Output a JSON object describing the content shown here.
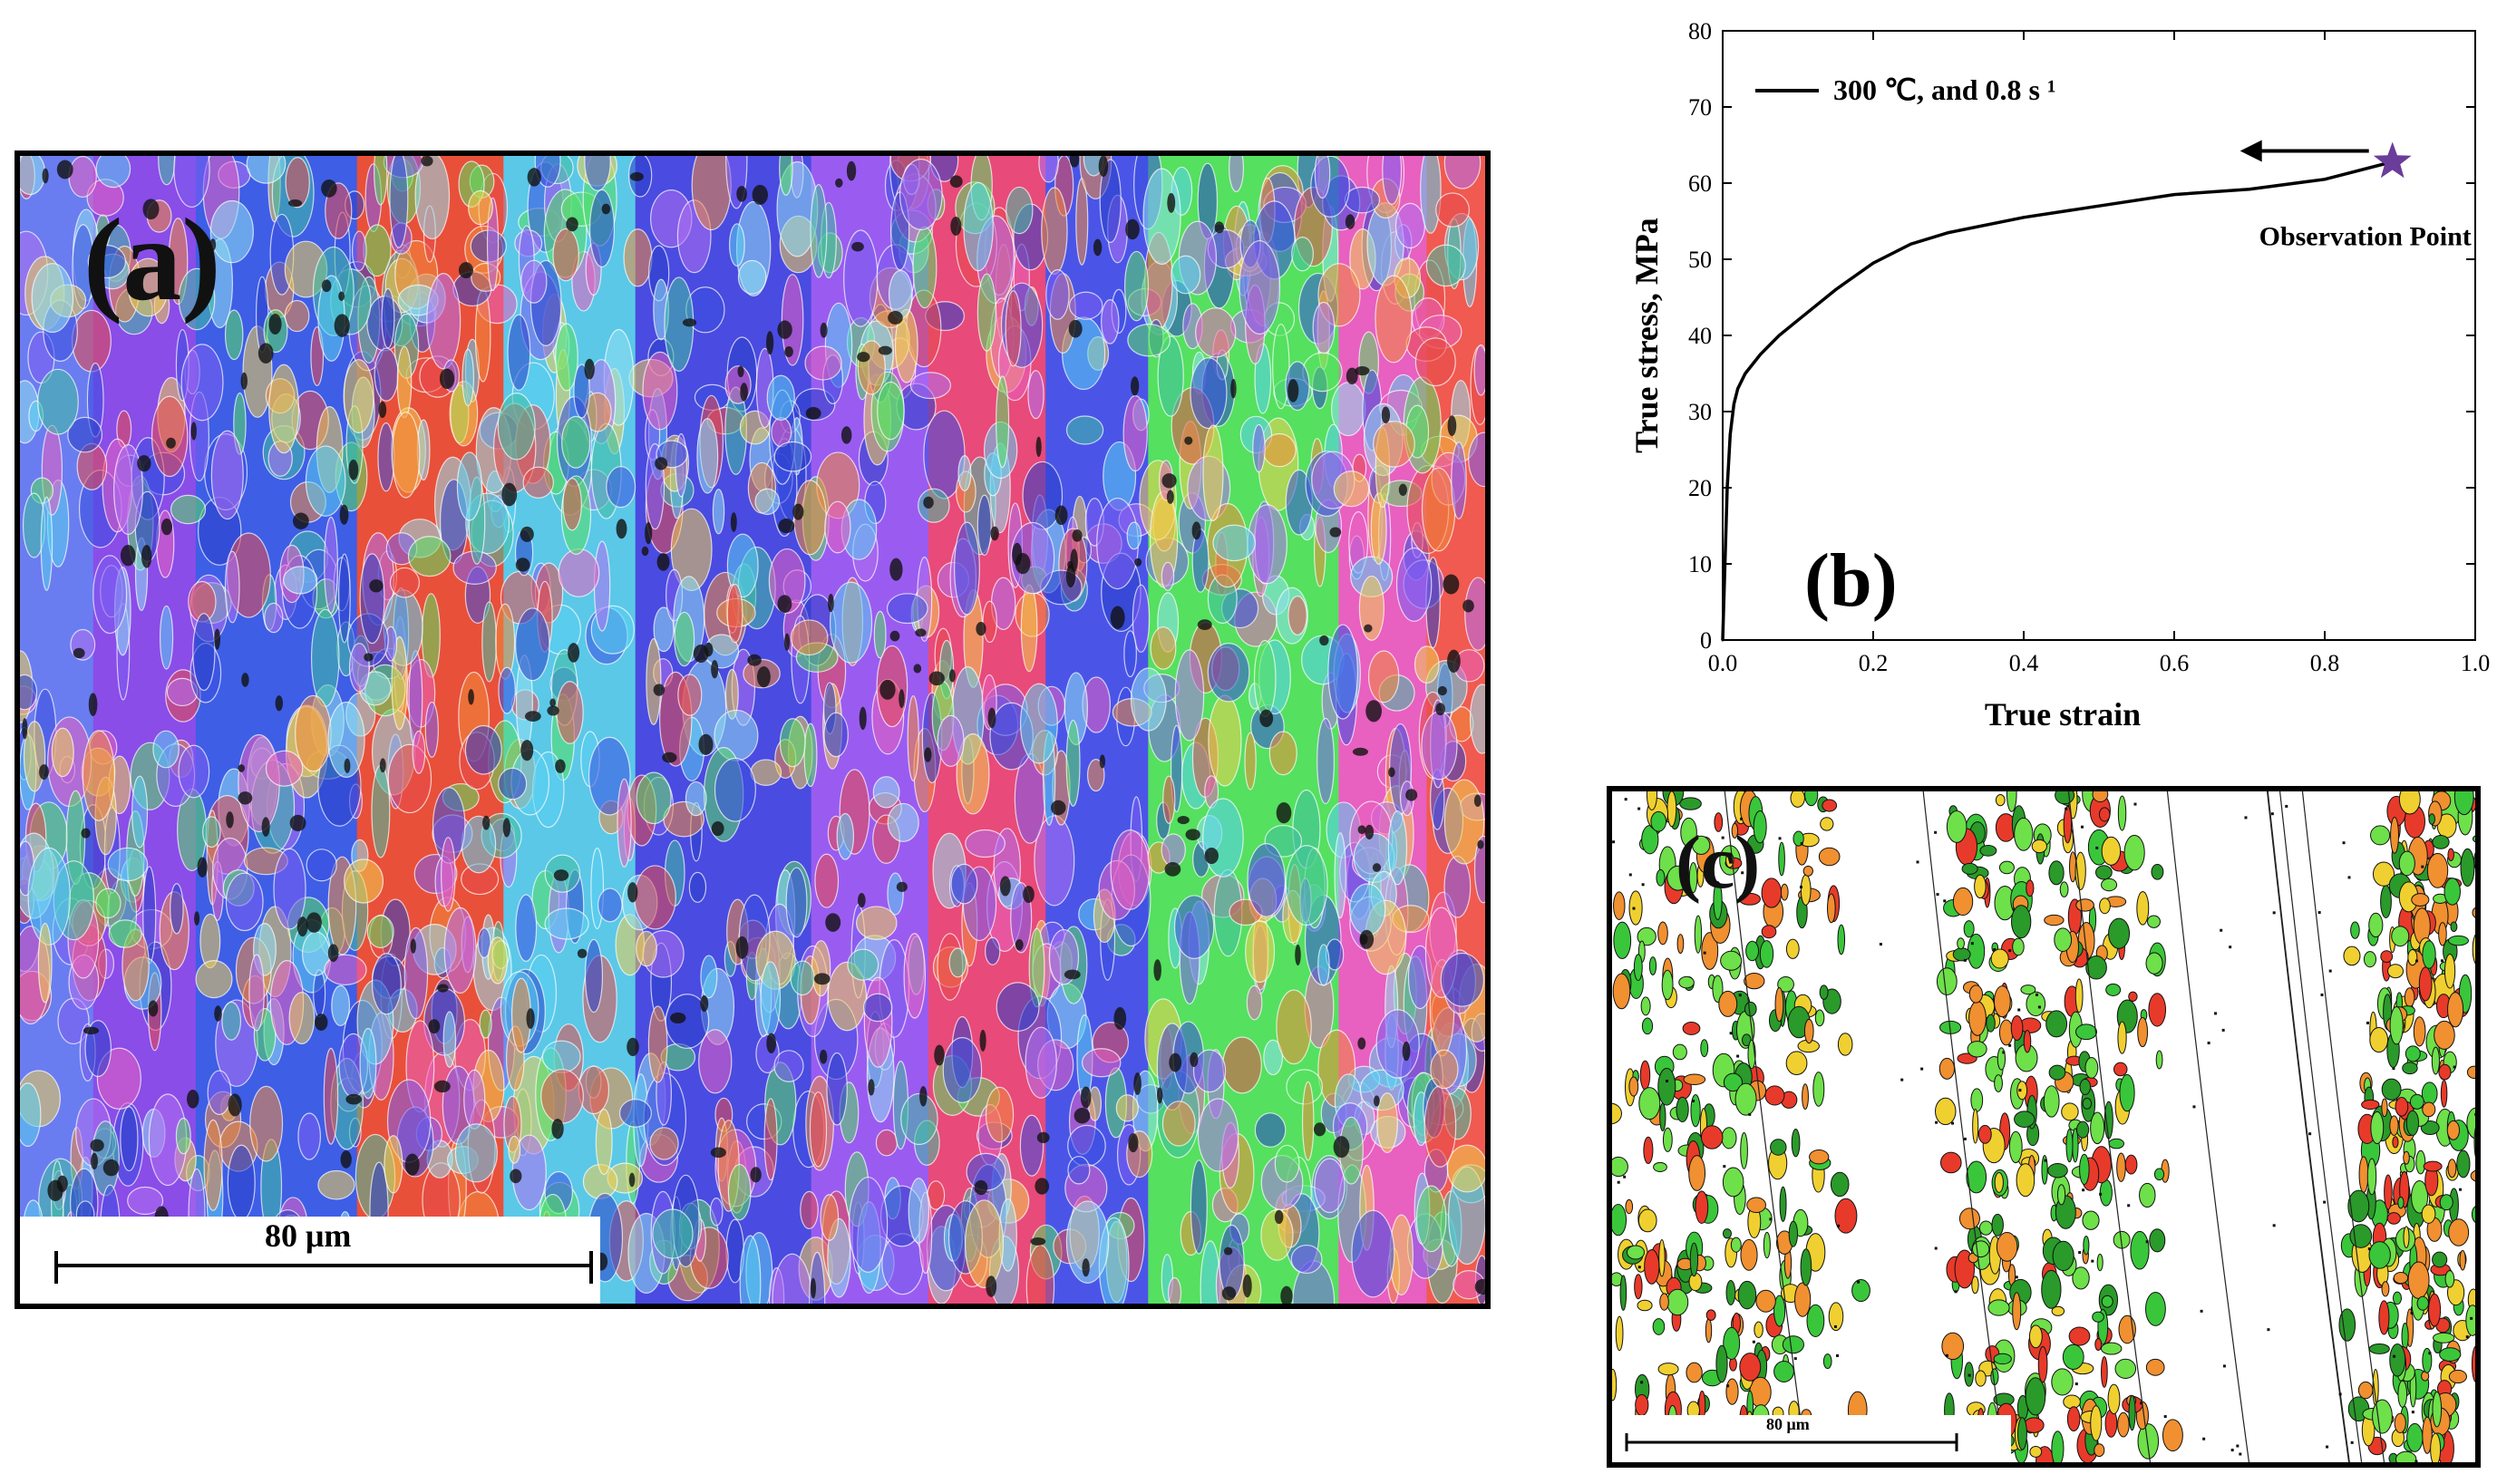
{
  "panels": {
    "a": {
      "label": "(a)",
      "scale_bar": "80 μm"
    },
    "b": {
      "label": "(b)"
    },
    "c": {
      "label": "(c)",
      "scale_bar": "80 μm"
    }
  },
  "chart_data": {
    "type": "line",
    "xlabel": "True strain",
    "ylabel": "True stress, MPa",
    "xlim": [
      0.0,
      1.0
    ],
    "ylim": [
      0,
      80
    ],
    "xticks": [
      "0.0",
      "0.2",
      "0.4",
      "0.6",
      "0.8",
      "1.0"
    ],
    "yticks": [
      "0",
      "10",
      "20",
      "30",
      "40",
      "50",
      "60",
      "70",
      "80"
    ],
    "legend_position": "top-left",
    "series": [
      {
        "name": "300 ℃, and 0.8 s ¹",
        "color": "#000000",
        "x": [
          0.0,
          0.003,
          0.006,
          0.01,
          0.015,
          0.02,
          0.03,
          0.05,
          0.075,
          0.1,
          0.15,
          0.2,
          0.25,
          0.3,
          0.4,
          0.5,
          0.6,
          0.7,
          0.8,
          0.89
        ],
        "y": [
          0,
          10,
          20,
          27,
          31,
          33,
          35,
          37.5,
          40,
          42,
          46,
          49.5,
          52,
          53.5,
          55.5,
          57,
          58.5,
          59.2,
          60.5,
          62.8
        ]
      }
    ],
    "annotations": [
      {
        "text": "Observation Point",
        "marker": "star",
        "color": "#6a3d9a",
        "x": 0.89,
        "y": 62.8,
        "arrow": "left"
      }
    ]
  }
}
